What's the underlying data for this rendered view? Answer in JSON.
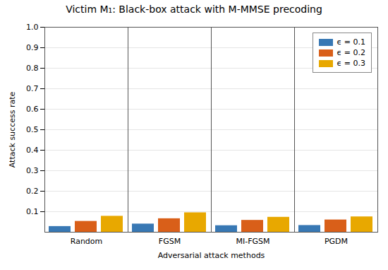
{
  "chart_data": {
    "type": "bar",
    "title": "Victim M₁: Black-box attack with M-MMSE precoding",
    "xlabel": "Adversarial attack methods",
    "ylabel": "Attack success rate",
    "categories": [
      "Random",
      "FGSM",
      "MI-FGSM",
      "PGDM"
    ],
    "series": [
      {
        "name": "ϵ = 0.1",
        "color": "#3878b4",
        "values": [
          0.028,
          0.04,
          0.032,
          0.033
        ]
      },
      {
        "name": "ϵ = 0.2",
        "color": "#d95f19",
        "values": [
          0.053,
          0.066,
          0.058,
          0.06
        ]
      },
      {
        "name": "ϵ = 0.3",
        "color": "#e8a800",
        "values": [
          0.078,
          0.095,
          0.073,
          0.075
        ]
      }
    ],
    "ylim": [
      0,
      1.0
    ],
    "yticks": [
      0.1,
      0.2,
      0.3,
      0.4,
      0.5,
      0.6,
      0.7,
      0.8,
      0.9,
      {
        "value": 1.0,
        "label": "1.0"
      }
    ],
    "grid": true,
    "legend": "upper right"
  }
}
